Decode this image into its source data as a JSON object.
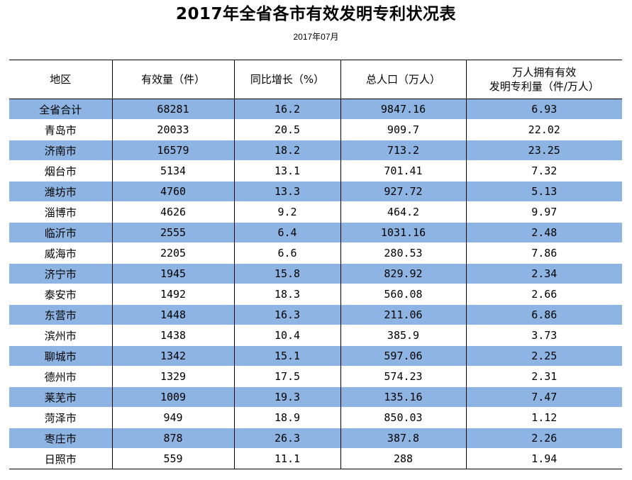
{
  "title": "2017年全省各市有效发明专利状况表",
  "subtitle": "2017年07月",
  "table": {
    "headers": [
      {
        "line1": "地区",
        "line2": ""
      },
      {
        "line1": "有效量（件）",
        "line2": ""
      },
      {
        "line1": "同比增长（%）",
        "line2": ""
      },
      {
        "line1": "总人口（万人）",
        "line2": ""
      },
      {
        "line1": "万人拥有有效",
        "line2": "发明专利量（件/万人）"
      }
    ],
    "rows": [
      {
        "region": "全省合计",
        "count": "68281",
        "growth": "16.2",
        "population": "9847.16",
        "per_10k": "6.93"
      },
      {
        "region": "青岛市",
        "count": "20033",
        "growth": "20.5",
        "population": "909.7",
        "per_10k": "22.02"
      },
      {
        "region": "济南市",
        "count": "16579",
        "growth": "18.2",
        "population": "713.2",
        "per_10k": "23.25"
      },
      {
        "region": "烟台市",
        "count": "5134",
        "growth": "13.1",
        "population": "701.41",
        "per_10k": "7.32"
      },
      {
        "region": "潍坊市",
        "count": "4760",
        "growth": "13.3",
        "population": "927.72",
        "per_10k": "5.13"
      },
      {
        "region": "淄博市",
        "count": "4626",
        "growth": "9.2",
        "population": "464.2",
        "per_10k": "9.97"
      },
      {
        "region": "临沂市",
        "count": "2555",
        "growth": "6.4",
        "population": "1031.16",
        "per_10k": "2.48"
      },
      {
        "region": "威海市",
        "count": "2205",
        "growth": "6.6",
        "population": "280.53",
        "per_10k": "7.86"
      },
      {
        "region": "济宁市",
        "count": "1945",
        "growth": "15.8",
        "population": "829.92",
        "per_10k": "2.34"
      },
      {
        "region": "泰安市",
        "count": "1492",
        "growth": "18.3",
        "population": "560.08",
        "per_10k": "2.66"
      },
      {
        "region": "东营市",
        "count": "1448",
        "growth": "16.3",
        "population": "211.06",
        "per_10k": "6.86"
      },
      {
        "region": "滨州市",
        "count": "1438",
        "growth": "10.4",
        "population": "385.9",
        "per_10k": "3.73"
      },
      {
        "region": "聊城市",
        "count": "1342",
        "growth": "15.1",
        "population": "597.06",
        "per_10k": "2.25"
      },
      {
        "region": "德州市",
        "count": "1329",
        "growth": "17.5",
        "population": "574.23",
        "per_10k": "2.31"
      },
      {
        "region": "莱芜市",
        "count": "1009",
        "growth": "19.3",
        "population": "135.16",
        "per_10k": "7.47"
      },
      {
        "region": "菏泽市",
        "count": "949",
        "growth": "18.9",
        "population": "850.03",
        "per_10k": "1.12"
      },
      {
        "region": "枣庄市",
        "count": "878",
        "growth": "26.3",
        "population": "387.8",
        "per_10k": "2.26"
      },
      {
        "region": "日照市",
        "count": "559",
        "growth": "11.1",
        "population": "288",
        "per_10k": "1.94"
      }
    ]
  },
  "colors": {
    "shaded_row": "#8db4e2",
    "plain_row": "#ffffff",
    "rule": "#000000"
  }
}
